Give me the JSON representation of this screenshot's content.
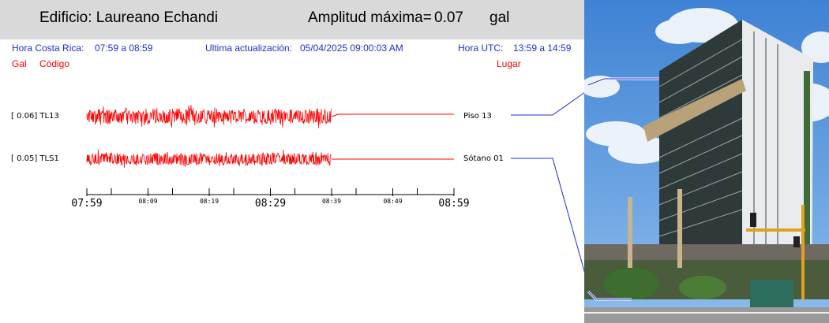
{
  "header": {
    "building": "Edificio: Laureano Echandi",
    "amplitude_label": "Amplitud máxima=",
    "amplitude_value": "0.07",
    "amplitude_unit": "gal"
  },
  "info": {
    "cr_label": "Hora Costa Rica:",
    "cr_range": "07:59 a 08:59",
    "update_label": "Ultima actualización:",
    "update_value": "05/04/2025 09:00:03 AM",
    "utc_label": "Hora UTC:",
    "utc_range": "13:59 a 14:59"
  },
  "columns": {
    "gal": "Gal",
    "codigo": "Código",
    "lugar": "Lugar"
  },
  "channels": [
    {
      "label": "[   0.06] TL13",
      "place": "Piso 13"
    },
    {
      "label": "[   0.05] TLS1",
      "place": "Sótano 01"
    }
  ],
  "chart_data": {
    "type": "line",
    "x_ticks_major": [
      "07:59",
      "08:29",
      "08:59"
    ],
    "x_ticks_minor": [
      "08:09",
      "08:19",
      "08:39",
      "08:49"
    ],
    "series": [
      {
        "name": "TL13",
        "peak_gal": 0.06,
        "data_until": "08:39"
      },
      {
        "name": "TLS1",
        "peak_gal": 0.05,
        "data_until": "08:39"
      }
    ],
    "colors": {
      "trace": "#ff0000",
      "connector": "#1a2bd6",
      "header_bg": "#d9d9d9",
      "info_text": "#1f2fd6"
    }
  },
  "photo": {
    "marker_colors": [
      "#1a2bd6"
    ]
  }
}
